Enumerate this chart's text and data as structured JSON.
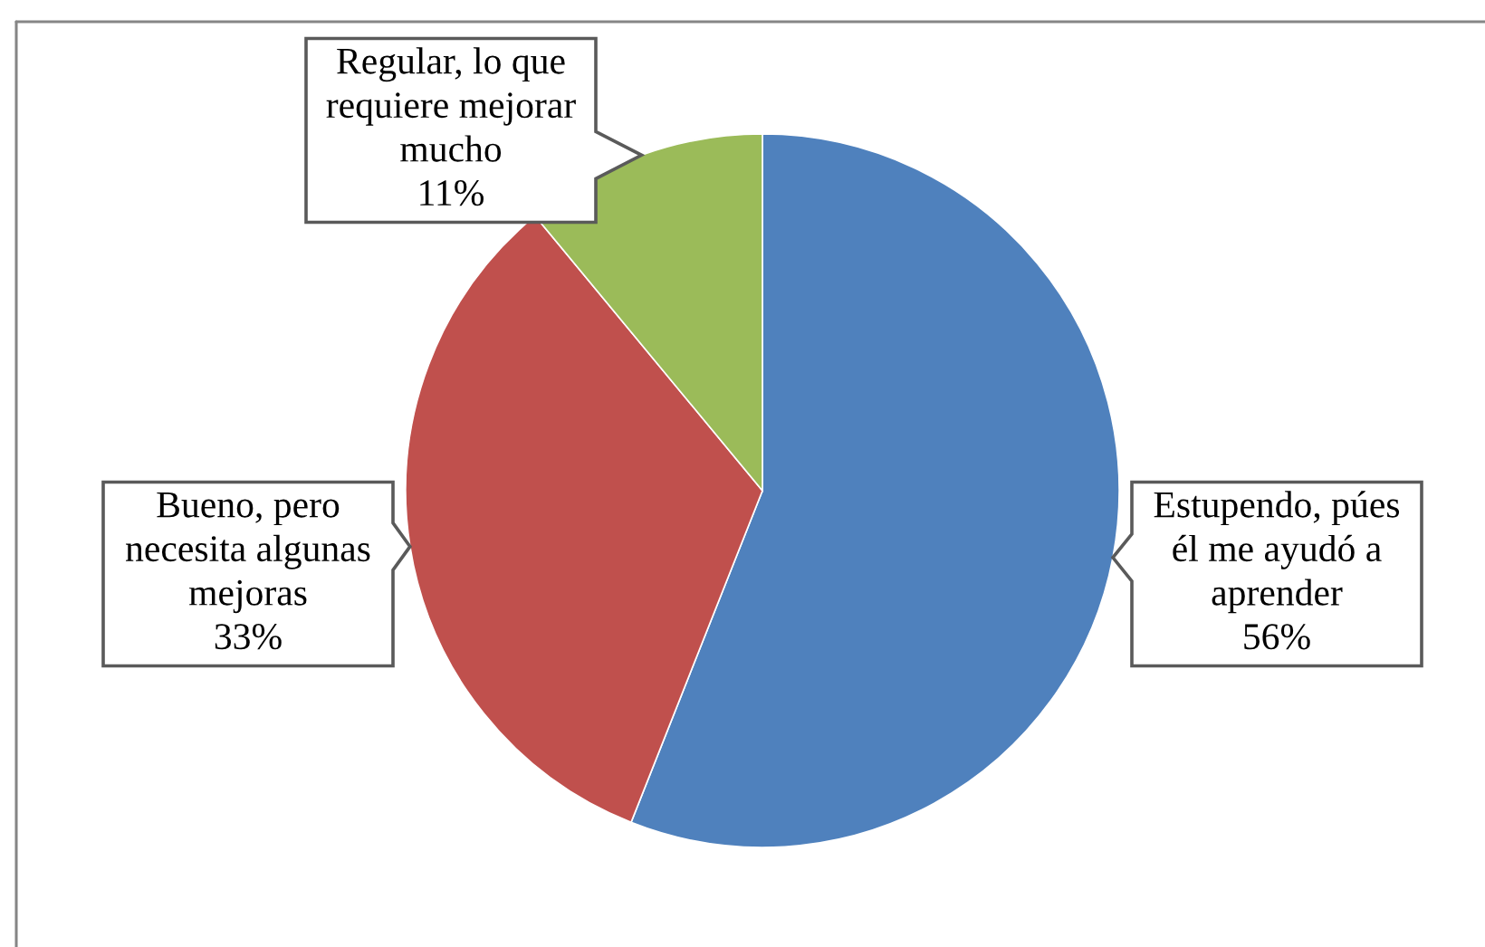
{
  "chart_data": {
    "type": "pie",
    "categories": [
      "Estupendo, púes él me ayudó a aprender",
      "Bueno, pero necesita algunas mejoras",
      "Regular, lo que requiere mejorar mucho"
    ],
    "values": [
      56,
      33,
      11
    ],
    "colors": [
      "#4f81bd",
      "#c0504d",
      "#9bbb59"
    ],
    "value_labels": [
      "56%",
      "33%",
      "11%"
    ]
  }
}
